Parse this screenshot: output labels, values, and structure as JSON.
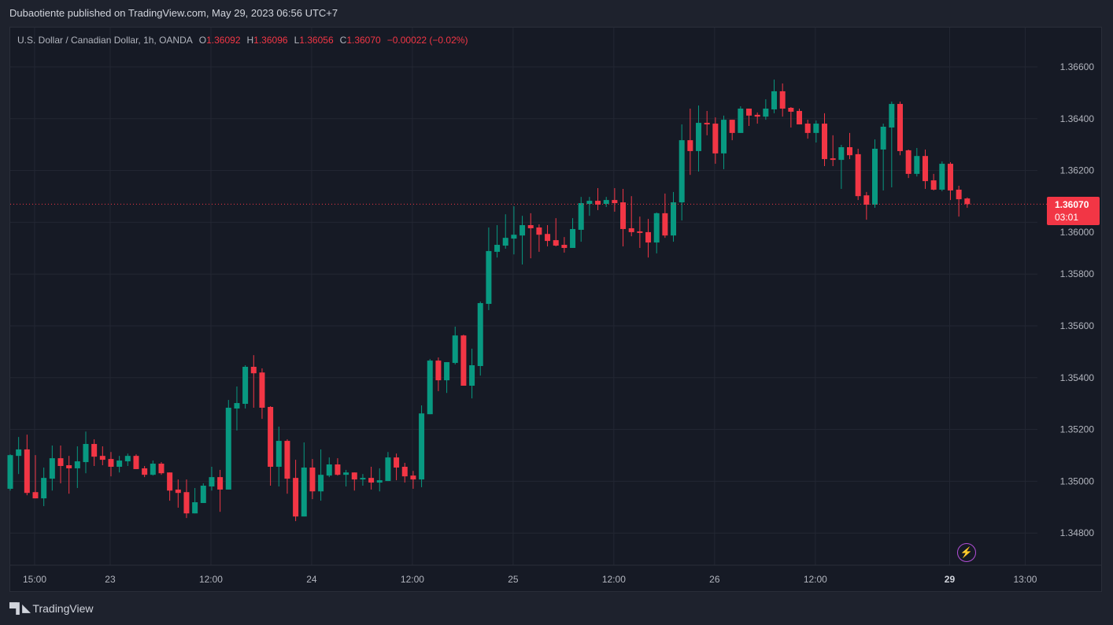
{
  "header": {
    "published": "Dubaotiente published on TradingView.com, May 29, 2023 06:56 UTC+7"
  },
  "legend": {
    "symbol": "U.S. Dollar / Canadian Dollar, 1h, OANDA",
    "o_label": "O",
    "o": "1.36092",
    "h_label": "H",
    "h": "1.36096",
    "l_label": "L",
    "l": "1.36056",
    "c_label": "C",
    "c": "1.36070",
    "change": "−0.00022 (−0.02%)"
  },
  "current_price": {
    "price": "1.36070",
    "countdown": "03:01",
    "value": 1.3607
  },
  "logo": {
    "text": "TradingView",
    "mark": "17"
  },
  "colors": {
    "up": "#089981",
    "down": "#f23645",
    "grid": "#232733",
    "axis_text": "#b2b5be",
    "lightning": "#b24fd8"
  },
  "icons": {
    "lightning": "lightning-icon"
  },
  "chart_data": {
    "type": "candlestick",
    "title": "U.S. Dollar / Canadian Dollar, 1h, OANDA",
    "ylim": [
      1.3472,
      1.3672
    ],
    "grid": true,
    "y_ticks": [
      {
        "label": "1.36600",
        "value": 1.366
      },
      {
        "label": "1.36400",
        "value": 1.364
      },
      {
        "label": "1.36200",
        "value": 1.362
      },
      {
        "label": "1.36000",
        "value": 1.36
      },
      {
        "label": "1.35800",
        "value": 1.358
      },
      {
        "label": "1.35600",
        "value": 1.356
      },
      {
        "label": "1.35400",
        "value": 1.354
      },
      {
        "label": "1.35200",
        "value": 1.352
      },
      {
        "label": "1.35000",
        "value": 1.35
      },
      {
        "label": "1.34800",
        "value": 1.348
      }
    ],
    "x_ticks": [
      {
        "label": "15:00",
        "bar": 3,
        "bold": false
      },
      {
        "label": "23",
        "bar": 12,
        "bold": false
      },
      {
        "label": "12:00",
        "bar": 24,
        "bold": false
      },
      {
        "label": "24",
        "bar": 36,
        "bold": false
      },
      {
        "label": "12:00",
        "bar": 48,
        "bold": false
      },
      {
        "label": "25",
        "bar": 60,
        "bold": false
      },
      {
        "label": "12:00",
        "bar": 72,
        "bold": false
      },
      {
        "label": "26",
        "bar": 84,
        "bold": false
      },
      {
        "label": "12:00",
        "bar": 96,
        "bold": false
      },
      {
        "label": "29",
        "bar": 112,
        "bold": true
      },
      {
        "label": "13:00",
        "bar": 121,
        "bold": false
      }
    ],
    "ohlc_fields": [
      "open",
      "high",
      "low",
      "close"
    ],
    "candles": [
      [
        1.34971,
        1.35104,
        1.34964,
        1.35101
      ],
      [
        1.35098,
        1.35171,
        1.35028,
        1.35123
      ],
      [
        1.35123,
        1.3518,
        1.34946,
        1.34955
      ],
      [
        1.34958,
        1.35101,
        1.34934,
        1.34934
      ],
      [
        1.34934,
        1.35053,
        1.34904,
        1.35013
      ],
      [
        1.3501,
        1.35138,
        1.34964,
        1.35089
      ],
      [
        1.35089,
        1.35138,
        1.34992,
        1.35059
      ],
      [
        1.35062,
        1.35098,
        1.34952,
        1.3505
      ],
      [
        1.3505,
        1.35135,
        1.34974,
        1.35077
      ],
      [
        1.35074,
        1.35192,
        1.35031,
        1.35144
      ],
      [
        1.35144,
        1.35162,
        1.35059,
        1.35095
      ],
      [
        1.35098,
        1.35135,
        1.35062,
        1.35083
      ],
      [
        1.35086,
        1.35113,
        1.35019,
        1.35056
      ],
      [
        1.35056,
        1.35098,
        1.35034,
        1.3508
      ],
      [
        1.35077,
        1.35107,
        1.35059,
        1.35098
      ],
      [
        1.35098,
        1.35104,
        1.35047,
        1.35047
      ],
      [
        1.3505,
        1.35059,
        1.35016,
        1.35025
      ],
      [
        1.35025,
        1.3508,
        1.35022,
        1.35068
      ],
      [
        1.35068,
        1.35074,
        1.35025,
        1.35031
      ],
      [
        1.35034,
        1.35034,
        1.34925,
        1.34964
      ],
      [
        1.34968,
        1.35007,
        1.34898,
        1.34955
      ],
      [
        1.34958,
        1.35007,
        1.34858,
        1.34876
      ],
      [
        1.34876,
        1.34974,
        1.34876,
        1.34919
      ],
      [
        1.34916,
        1.34992,
        1.34916,
        1.34983
      ],
      [
        1.3498,
        1.35056,
        1.34964,
        1.35016
      ],
      [
        1.35016,
        1.35044,
        1.34882,
        1.34968
      ],
      [
        1.34968,
        1.35314,
        1.34968,
        1.35284
      ],
      [
        1.35281,
        1.35366,
        1.35196,
        1.35302
      ],
      [
        1.35299,
        1.35448,
        1.35281,
        1.35442
      ],
      [
        1.35442,
        1.35487,
        1.35284,
        1.35417
      ],
      [
        1.3542,
        1.35436,
        1.35241,
        1.35284
      ],
      [
        1.35287,
        1.3529,
        1.34983,
        1.35056
      ],
      [
        1.35056,
        1.35211,
        1.3498,
        1.35156
      ],
      [
        1.35156,
        1.35162,
        1.34952,
        1.3501
      ],
      [
        1.35013,
        1.35083,
        1.34846,
        1.34864
      ],
      [
        1.34864,
        1.3515,
        1.34864,
        1.35053
      ],
      [
        1.35053,
        1.35086,
        1.34931,
        1.34961
      ],
      [
        1.34961,
        1.35123,
        1.34925,
        1.35025
      ],
      [
        1.35022,
        1.35092,
        1.35016,
        1.35065
      ],
      [
        1.35065,
        1.35089,
        1.35022,
        1.35025
      ],
      [
        1.35025,
        1.35044,
        1.3498,
        1.35034
      ],
      [
        1.35034,
        1.35034,
        1.34964,
        1.35007
      ],
      [
        1.35007,
        1.35028,
        1.34983,
        1.35013
      ],
      [
        1.35013,
        1.35056,
        1.34968,
        1.34995
      ],
      [
        1.34995,
        1.3505,
        1.34961,
        1.35004
      ],
      [
        1.35001,
        1.35113,
        1.35001,
        1.35092
      ],
      [
        1.35092,
        1.35107,
        1.35004,
        1.35053
      ],
      [
        1.35056,
        1.35071,
        1.34995,
        1.35019
      ],
      [
        1.35022,
        1.3504,
        1.34971,
        1.35007
      ],
      [
        1.35007,
        1.35293,
        1.34977,
        1.35262
      ],
      [
        1.35259,
        1.35472,
        1.35259,
        1.35466
      ],
      [
        1.35466,
        1.35478,
        1.35348,
        1.3539
      ],
      [
        1.3539,
        1.3546,
        1.35341,
        1.3546
      ],
      [
        1.35457,
        1.35597,
        1.35451,
        1.35563
      ],
      [
        1.35563,
        1.35566,
        1.35369,
        1.35369
      ],
      [
        1.35369,
        1.35512,
        1.3532,
        1.35448
      ],
      [
        1.35445,
        1.35694,
        1.35408,
        1.35688
      ],
      [
        1.35685,
        1.3598,
        1.35661,
        1.35889
      ],
      [
        1.35886,
        1.35989,
        1.35864,
        1.35913
      ],
      [
        1.3591,
        1.36031,
        1.35898,
        1.3594
      ],
      [
        1.35937,
        1.36062,
        1.35876,
        1.35952
      ],
      [
        1.35949,
        1.36025,
        1.35837,
        1.35989
      ],
      [
        1.35989,
        1.36035,
        1.35861,
        1.35977
      ],
      [
        1.3598,
        1.35992,
        1.35886,
        1.35952
      ],
      [
        1.35955,
        1.35989,
        1.35907,
        1.35928
      ],
      [
        1.35931,
        1.36016,
        1.35907,
        1.3591
      ],
      [
        1.35913,
        1.35943,
        1.35883,
        1.35901
      ],
      [
        1.35901,
        1.36016,
        1.35901,
        1.35974
      ],
      [
        1.35971,
        1.36098,
        1.35925,
        1.36074
      ],
      [
        1.36071,
        1.36098,
        1.36025,
        1.36083
      ],
      [
        1.36083,
        1.36132,
        1.36047,
        1.36068
      ],
      [
        1.36071,
        1.36098,
        1.36059,
        1.36086
      ],
      [
        1.36086,
        1.36132,
        1.36041,
        1.36074
      ],
      [
        1.36077,
        1.36129,
        1.35907,
        1.35974
      ],
      [
        1.35977,
        1.36101,
        1.35946,
        1.35962
      ],
      [
        1.35965,
        1.36022,
        1.35901,
        1.35959
      ],
      [
        1.35962,
        1.36013,
        1.35864,
        1.35922
      ],
      [
        1.35922,
        1.36038,
        1.3588,
        1.36035
      ],
      [
        1.36035,
        1.36111,
        1.3594,
        1.35949
      ],
      [
        1.35949,
        1.36117,
        1.35925,
        1.36077
      ],
      [
        1.36077,
        1.36378,
        1.36007,
        1.36317
      ],
      [
        1.36317,
        1.36439,
        1.36183,
        1.36275
      ],
      [
        1.36275,
        1.36451,
        1.36196,
        1.36384
      ],
      [
        1.36384,
        1.3643,
        1.36336,
        1.36378
      ],
      [
        1.36381,
        1.36405,
        1.36226,
        1.36266
      ],
      [
        1.36266,
        1.36412,
        1.36205,
        1.36396
      ],
      [
        1.36396,
        1.36396,
        1.36317,
        1.36345
      ],
      [
        1.36345,
        1.36448,
        1.36345,
        1.36439
      ],
      [
        1.36439,
        1.36439,
        1.36372,
        1.36412
      ],
      [
        1.36415,
        1.36424,
        1.36381,
        1.36408
      ],
      [
        1.36408,
        1.36475,
        1.36396,
        1.36439
      ],
      [
        1.36436,
        1.36551,
        1.36421,
        1.36506
      ],
      [
        1.36506,
        1.36536,
        1.36408,
        1.36439
      ],
      [
        1.36442,
        1.36445,
        1.36366,
        1.36427
      ],
      [
        1.3643,
        1.36439,
        1.36378,
        1.36378
      ],
      [
        1.36381,
        1.36396,
        1.36323,
        1.36345
      ],
      [
        1.36345,
        1.36393,
        1.36308,
        1.36381
      ],
      [
        1.36381,
        1.36421,
        1.36217,
        1.36244
      ],
      [
        1.36247,
        1.36336,
        1.36217,
        1.36241
      ],
      [
        1.36241,
        1.36299,
        1.36129,
        1.3629
      ],
      [
        1.3629,
        1.36345,
        1.36244,
        1.36259
      ],
      [
        1.36263,
        1.36284,
        1.36086,
        1.36101
      ],
      [
        1.36104,
        1.36117,
        1.3601,
        1.36068
      ],
      [
        1.36068,
        1.3632,
        1.36056,
        1.36284
      ],
      [
        1.36281,
        1.36381,
        1.36123,
        1.36369
      ],
      [
        1.36366,
        1.36466,
        1.36135,
        1.36457
      ],
      [
        1.36457,
        1.36466,
        1.36259,
        1.36275
      ],
      [
        1.36278,
        1.36281,
        1.36171,
        1.36187
      ],
      [
        1.36187,
        1.36287,
        1.36177,
        1.36256
      ],
      [
        1.36256,
        1.36281,
        1.36129,
        1.36159
      ],
      [
        1.36162,
        1.36187,
        1.36123,
        1.36126
      ],
      [
        1.36126,
        1.36235,
        1.3612,
        1.36226
      ],
      [
        1.36226,
        1.36232,
        1.36086,
        1.36123
      ],
      [
        1.36126,
        1.36141,
        1.36022,
        1.36089
      ],
      [
        1.36092,
        1.36096,
        1.36056,
        1.3607
      ]
    ]
  }
}
